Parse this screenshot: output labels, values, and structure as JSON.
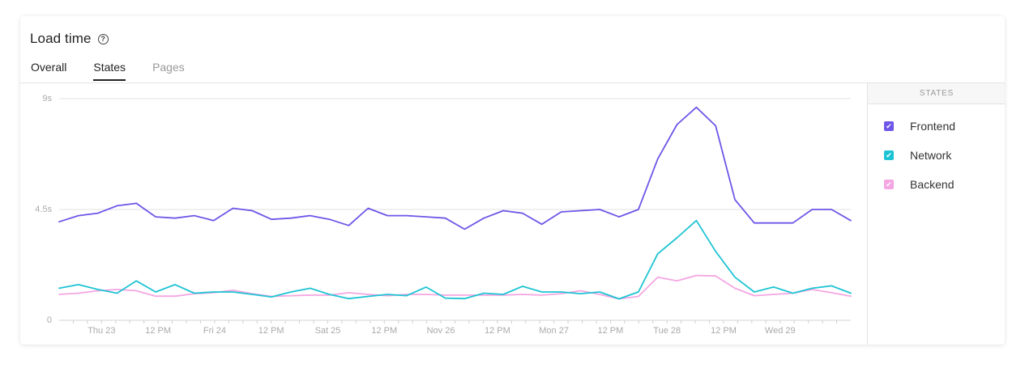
{
  "card": {
    "title": "Load time",
    "help_icon": "question-circle-icon",
    "tabs": [
      {
        "label": "Overall",
        "state": "normal"
      },
      {
        "label": "States",
        "state": "active"
      },
      {
        "label": "Pages",
        "state": "inactive"
      }
    ]
  },
  "legend": {
    "header": "STATES",
    "items": [
      {
        "label": "Frontend",
        "color": "#6e56e8",
        "checked": true,
        "icon": "checkmark-icon"
      },
      {
        "label": "Network",
        "color": "#1ec4d4",
        "checked": true,
        "icon": "checkmark-icon"
      },
      {
        "label": "Backend",
        "color": "#f4a6e2",
        "checked": true,
        "icon": "checkmark-icon"
      }
    ]
  },
  "chart_data": {
    "type": "line",
    "ylim": [
      0,
      9
    ],
    "yticks": [
      {
        "value": 0,
        "label": "0"
      },
      {
        "value": 4.5,
        "label": "4.5s"
      },
      {
        "value": 9,
        "label": "9s"
      }
    ],
    "x_range": [
      0,
      56
    ],
    "xticks": [
      {
        "x": 3,
        "label": "Thu 23"
      },
      {
        "x": 7,
        "label": "12 PM"
      },
      {
        "x": 11,
        "label": "Fri 24"
      },
      {
        "x": 15,
        "label": "12 PM"
      },
      {
        "x": 19,
        "label": "Sat 25"
      },
      {
        "x": 23,
        "label": "12 PM"
      },
      {
        "x": 27,
        "label": "Nov 26"
      },
      {
        "x": 31,
        "label": "12 PM"
      },
      {
        "x": 35,
        "label": "Mon 27"
      },
      {
        "x": 39,
        "label": "12 PM"
      },
      {
        "x": 43,
        "label": "Tue 28"
      },
      {
        "x": 47,
        "label": "12 PM"
      },
      {
        "x": 51,
        "label": "Wed 29"
      }
    ],
    "grid": true,
    "series": [
      {
        "name": "Frontend",
        "color": "#6e56e8",
        "values": [
          4.0,
          4.25,
          4.35,
          4.65,
          4.75,
          4.2,
          4.15,
          4.25,
          4.05,
          4.55,
          4.45,
          4.1,
          4.15,
          4.25,
          4.1,
          3.85,
          4.55,
          4.25,
          4.25,
          4.2,
          4.15,
          3.7,
          4.15,
          4.45,
          4.35,
          3.9,
          4.4,
          4.45,
          4.5,
          4.2,
          4.5,
          6.55,
          7.95,
          8.65,
          7.9,
          4.9,
          3.95,
          3.95,
          3.95,
          4.5,
          4.5,
          4.05
        ]
      },
      {
        "name": "Network",
        "color": "#1ec4d4",
        "values": [
          1.3,
          1.45,
          1.25,
          1.1,
          1.6,
          1.15,
          1.45,
          1.1,
          1.15,
          1.15,
          1.05,
          0.95,
          1.15,
          1.3,
          1.05,
          0.88,
          0.97,
          1.05,
          1.0,
          1.35,
          0.9,
          0.88,
          1.1,
          1.05,
          1.38,
          1.15,
          1.15,
          1.08,
          1.15,
          0.87,
          1.15,
          2.7,
          3.35,
          4.05,
          2.8,
          1.75,
          1.15,
          1.35,
          1.1,
          1.3,
          1.4,
          1.1
        ]
      },
      {
        "name": "Backend",
        "color": "#f4a6e2",
        "values": [
          1.05,
          1.1,
          1.2,
          1.25,
          1.2,
          0.98,
          0.98,
          1.08,
          1.12,
          1.22,
          1.08,
          0.97,
          1.0,
          1.02,
          1.02,
          1.12,
          1.05,
          1.0,
          1.05,
          1.05,
          1.02,
          1.02,
          1.02,
          1.02,
          1.05,
          1.02,
          1.08,
          1.2,
          1.05,
          0.87,
          0.97,
          1.75,
          1.6,
          1.82,
          1.8,
          1.3,
          1.0,
          1.05,
          1.1,
          1.25,
          1.12,
          0.98
        ]
      }
    ]
  }
}
